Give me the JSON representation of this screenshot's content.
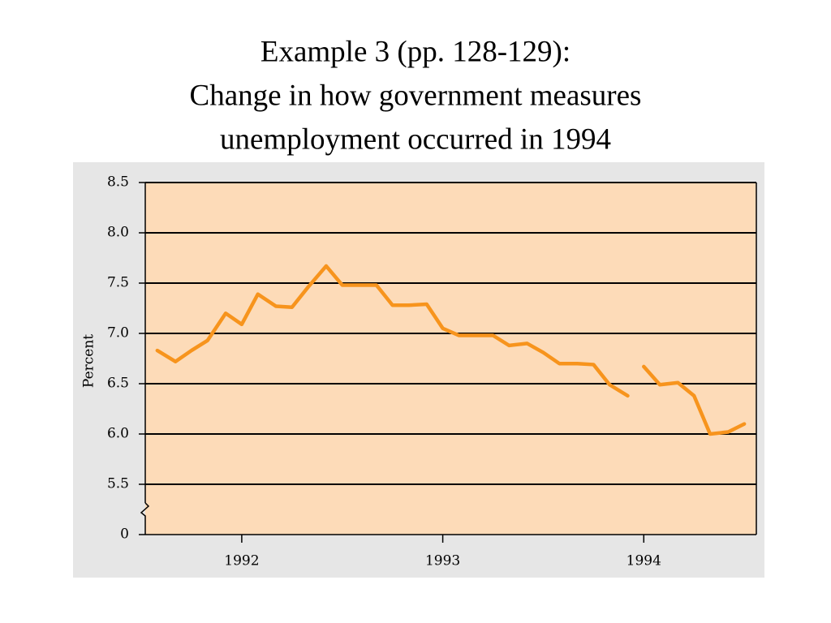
{
  "chart_data": {
    "type": "line",
    "title": [
      "Example 3 (pp. 128-129):",
      "Change in how government measures",
      "unemployment occurred in 1994"
    ],
    "ylabel": "Percent",
    "axis_break": true,
    "ylim": [
      5,
      8.5
    ],
    "yticks": [
      {
        "value": 0,
        "label": "0"
      },
      {
        "value": 5.5,
        "label": "5.5"
      },
      {
        "value": 6,
        "label": "6.0"
      },
      {
        "value": 6.5,
        "label": "6.5"
      },
      {
        "value": 7,
        "label": "7.0"
      },
      {
        "value": 7.5,
        "label": "7.5"
      },
      {
        "value": 8,
        "label": "8.0"
      },
      {
        "value": 8.5,
        "label": "8.5"
      }
    ],
    "xlim": [
      1991.52,
      1994.56
    ],
    "xticks": [
      1992,
      1993,
      1994
    ],
    "grid": true,
    "series": [
      {
        "color": "#f7941d",
        "x": [
          1991.58,
          1991.67,
          1991.75,
          1991.83,
          1991.92,
          1992.0,
          1992.08,
          1992.17,
          1992.25,
          1992.33,
          1992.42,
          1992.5,
          1992.58,
          1992.67,
          1992.75,
          1992.83,
          1992.92,
          1993.0,
          1993.08,
          1993.17,
          1993.25,
          1993.33,
          1993.42,
          1993.5,
          1993.58,
          1993.67,
          1993.75,
          1993.83,
          1993.92
        ],
        "values": [
          6.83,
          6.72,
          6.83,
          6.93,
          7.2,
          7.09,
          7.39,
          7.27,
          7.26,
          7.46,
          7.67,
          7.48,
          7.48,
          7.48,
          7.28,
          7.28,
          7.29,
          7.05,
          6.98,
          6.98,
          6.98,
          6.88,
          6.9,
          6.81,
          6.7,
          6.7,
          6.69,
          6.49,
          6.38
        ]
      },
      {
        "color": "#f7941d",
        "x": [
          1994.0,
          1994.08,
          1994.17,
          1994.25,
          1994.33,
          1994.42,
          1994.5
        ],
        "values": [
          6.67,
          6.49,
          6.51,
          6.38,
          6.0,
          6.02,
          6.1
        ]
      }
    ]
  }
}
